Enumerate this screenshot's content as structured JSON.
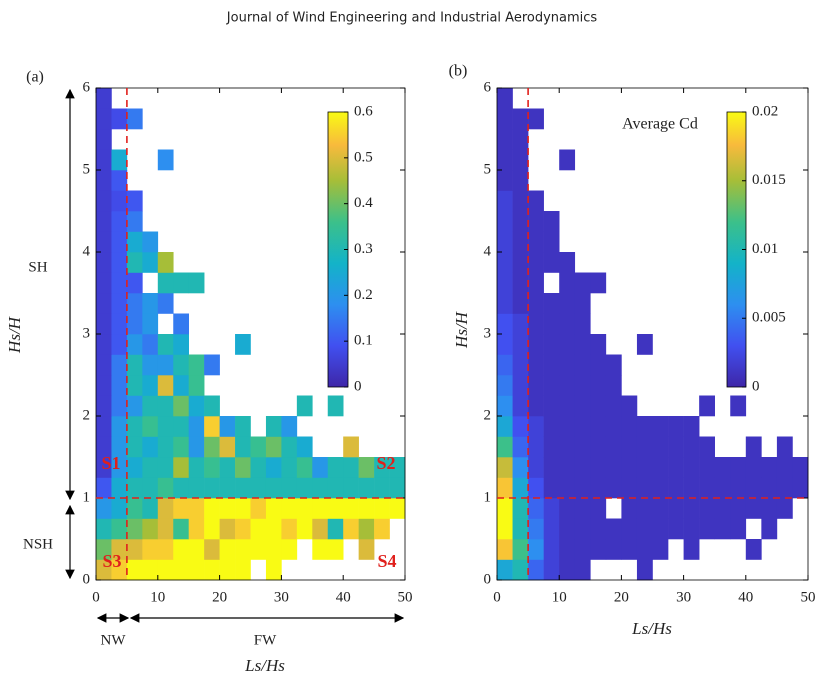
{
  "header": {
    "title": "Journal of Wind Engineering and Industrial Aerodynamics"
  },
  "chart_data": [
    {
      "type": "heatmap",
      "panel_label": "(a)",
      "xlabel": "Ls/Hs",
      "ylabel": "Hs/H",
      "xbins": [
        0,
        2.5,
        5,
        7.5,
        10,
        12.5,
        15,
        17.5,
        20,
        22.5,
        25,
        27.5,
        30,
        32.5,
        35,
        37.5,
        40,
        42.5,
        45,
        47.5,
        50
      ],
      "ybins": [
        0,
        0.25,
        0.5,
        0.75,
        1,
        1.25,
        1.5,
        1.75,
        2,
        2.25,
        2.5,
        2.75,
        3,
        3.25,
        3.5,
        3.75,
        4,
        4.25,
        4.5,
        4.75,
        5,
        5.25,
        5.5,
        5.75,
        6
      ],
      "xlim": [
        0,
        50
      ],
      "ylim": [
        0,
        6
      ],
      "xticks": [
        0,
        10,
        20,
        30,
        40,
        50
      ],
      "yticks": [
        0,
        1,
        2,
        3,
        4,
        5,
        6
      ],
      "clim": [
        0,
        0.6
      ],
      "cticks": [
        0,
        0.1,
        0.2,
        0.3,
        0.4,
        0.5,
        0.6
      ],
      "colormap": "parula",
      "vline": 5,
      "hline": 1,
      "ref_color": "#e0201c",
      "annotations": [
        "S1",
        "S2",
        "S3",
        "S4"
      ],
      "regions": [
        "SH",
        "NSH",
        "NW",
        "FW"
      ],
      "z": [
        [
          0.5,
          0.55,
          0.6,
          0.6,
          0.6,
          0.6,
          0.6,
          0.6,
          0.6,
          0.6,
          null,
          0.6,
          null,
          null,
          null,
          null,
          null,
          null,
          null,
          null
        ],
        [
          0.4,
          0.5,
          0.5,
          0.55,
          0.55,
          0.6,
          0.6,
          0.5,
          0.6,
          0.6,
          0.6,
          0.6,
          0.6,
          null,
          0.6,
          0.6,
          null,
          0.5,
          null,
          null
        ],
        [
          0.3,
          0.35,
          0.4,
          0.45,
          0.5,
          0.35,
          0.55,
          0.6,
          0.5,
          0.55,
          0.6,
          0.6,
          0.55,
          0.6,
          0.5,
          0.3,
          0.55,
          0.45,
          0.55,
          null
        ],
        [
          0.2,
          0.25,
          0.35,
          0.3,
          0.5,
          0.55,
          0.55,
          0.6,
          0.6,
          0.6,
          0.55,
          0.6,
          0.6,
          0.6,
          0.6,
          0.6,
          0.6,
          0.6,
          0.6,
          0.6
        ],
        [
          0.1,
          0.25,
          0.3,
          0.3,
          0.35,
          0.3,
          0.3,
          0.3,
          0.3,
          0.3,
          0.3,
          0.3,
          0.3,
          0.3,
          0.3,
          0.3,
          0.3,
          0.3,
          0.3,
          0.3
        ],
        [
          0.05,
          0.2,
          0.25,
          0.3,
          0.3,
          0.45,
          0.3,
          0.35,
          0.3,
          0.4,
          0.3,
          0.25,
          0.3,
          0.35,
          0.2,
          0.3,
          0.3,
          0.4,
          0.3,
          0.3
        ],
        [
          0.05,
          0.2,
          0.3,
          0.25,
          0.3,
          0.35,
          0.2,
          0.4,
          0.5,
          0.3,
          0.35,
          0.4,
          0.3,
          0.25,
          null,
          null,
          0.5,
          null,
          null,
          null
        ],
        [
          0.05,
          0.2,
          0.3,
          0.35,
          0.3,
          0.3,
          0.2,
          0.55,
          0.2,
          0.3,
          null,
          0.3,
          0.2,
          null,
          null,
          null,
          null,
          null,
          null,
          null
        ],
        [
          0.05,
          0.15,
          0.2,
          0.3,
          0.3,
          0.4,
          0.25,
          0.3,
          null,
          null,
          null,
          null,
          null,
          0.3,
          null,
          0.3,
          null,
          null,
          null,
          null
        ],
        [
          0.05,
          0.15,
          0.3,
          0.25,
          0.5,
          0.25,
          0.35,
          null,
          null,
          null,
          null,
          null,
          null,
          null,
          null,
          null,
          null,
          null,
          null,
          null
        ],
        [
          0.05,
          0.15,
          0.3,
          0.2,
          0.2,
          0.3,
          0.35,
          0.15,
          null,
          null,
          null,
          null,
          null,
          null,
          null,
          null,
          null,
          null,
          null,
          null
        ],
        [
          0.05,
          0.1,
          0.2,
          0.15,
          0.3,
          0.25,
          null,
          null,
          null,
          0.25,
          null,
          null,
          null,
          null,
          null,
          null,
          null,
          null,
          null,
          null
        ],
        [
          0.05,
          0.1,
          0.15,
          0.2,
          null,
          0.15,
          null,
          null,
          null,
          null,
          null,
          null,
          null,
          null,
          null,
          null,
          null,
          null,
          null,
          null
        ],
        [
          0.05,
          0.1,
          0.15,
          0.2,
          0.15,
          null,
          null,
          null,
          null,
          null,
          null,
          null,
          null,
          null,
          null,
          null,
          null,
          null,
          null,
          null
        ],
        [
          0.05,
          0.1,
          0.1,
          null,
          0.3,
          0.3,
          0.3,
          null,
          null,
          null,
          null,
          null,
          null,
          null,
          null,
          null,
          null,
          null,
          null,
          null
        ],
        [
          0.05,
          0.1,
          0.3,
          0.25,
          0.45,
          null,
          null,
          null,
          null,
          null,
          null,
          null,
          null,
          null,
          null,
          null,
          null,
          null,
          null,
          null
        ],
        [
          0.05,
          0.1,
          0.25,
          0.2,
          null,
          null,
          null,
          null,
          null,
          null,
          null,
          null,
          null,
          null,
          null,
          null,
          null,
          null,
          null,
          null
        ],
        [
          0.05,
          0.1,
          0.15,
          null,
          null,
          null,
          null,
          null,
          null,
          null,
          null,
          null,
          null,
          null,
          null,
          null,
          null,
          null,
          null,
          null
        ],
        [
          0.05,
          0.08,
          0.1,
          null,
          null,
          null,
          null,
          null,
          null,
          null,
          null,
          null,
          null,
          null,
          null,
          null,
          null,
          null,
          null,
          null
        ],
        [
          0.05,
          0.1,
          null,
          null,
          null,
          null,
          null,
          null,
          null,
          null,
          null,
          null,
          null,
          null,
          null,
          null,
          null,
          null,
          null,
          null
        ],
        [
          0.05,
          0.25,
          null,
          null,
          0.18,
          null,
          null,
          null,
          null,
          null,
          null,
          null,
          null,
          null,
          null,
          null,
          null,
          null,
          null,
          null
        ],
        [
          0.05,
          null,
          null,
          null,
          null,
          null,
          null,
          null,
          null,
          null,
          null,
          null,
          null,
          null,
          null,
          null,
          null,
          null,
          null,
          null
        ],
        [
          0.05,
          0.08,
          0.15,
          null,
          null,
          null,
          null,
          null,
          null,
          null,
          null,
          null,
          null,
          null,
          null,
          null,
          null,
          null,
          null,
          null
        ],
        [
          0.05,
          null,
          null,
          null,
          null,
          null,
          null,
          null,
          null,
          null,
          null,
          null,
          null,
          null,
          null,
          null,
          null,
          null,
          null,
          null
        ]
      ]
    },
    {
      "type": "heatmap",
      "panel_label": "(b)",
      "xlabel": "Ls/Hs",
      "ylabel": "Hs/H",
      "colorbar_label": "Average Cd",
      "xbins": [
        0,
        2.5,
        5,
        7.5,
        10,
        12.5,
        15,
        17.5,
        20,
        22.5,
        25,
        27.5,
        30,
        32.5,
        35,
        37.5,
        40,
        42.5,
        45,
        47.5,
        50
      ],
      "ybins": [
        0,
        0.25,
        0.5,
        0.75,
        1,
        1.25,
        1.5,
        1.75,
        2,
        2.25,
        2.5,
        2.75,
        3,
        3.25,
        3.5,
        3.75,
        4,
        4.25,
        4.5,
        4.75,
        5,
        5.25,
        5.5,
        5.75,
        6
      ],
      "xlim": [
        0,
        50
      ],
      "ylim": [
        0,
        6
      ],
      "xticks": [
        0,
        10,
        20,
        30,
        40,
        50
      ],
      "yticks": [
        0,
        1,
        2,
        3,
        4,
        5,
        6
      ],
      "clim": [
        0,
        0.02
      ],
      "cticks": [
        0,
        0.005,
        0.01,
        0.015,
        0.02
      ],
      "colormap": "parula",
      "vline": 5,
      "hline": 1,
      "ref_color": "#e0201c",
      "z": [
        [
          0.008,
          0.01,
          0.004,
          0.002,
          0.001,
          0.001,
          null,
          null,
          null,
          0.001,
          null,
          null,
          null,
          null,
          null,
          null,
          null,
          null,
          null,
          null
        ],
        [
          0.018,
          0.012,
          0.006,
          0.002,
          0.001,
          0.001,
          0.001,
          0.001,
          0.001,
          0.001,
          0.001,
          null,
          0.001,
          null,
          null,
          null,
          0.001,
          null,
          null,
          null
        ],
        [
          0.02,
          0.01,
          0.005,
          0.002,
          0.001,
          0.001,
          0.001,
          0.001,
          0.001,
          0.001,
          0.001,
          0.001,
          0.001,
          0.001,
          0.001,
          0.001,
          null,
          0.001,
          null,
          null
        ],
        [
          0.02,
          0.01,
          0.004,
          0.002,
          0.001,
          0.001,
          0.001,
          null,
          0.001,
          0.001,
          0.001,
          0.001,
          0.001,
          0.001,
          0.001,
          0.001,
          0.001,
          0.001,
          0.001,
          null
        ],
        [
          0.018,
          0.008,
          0.003,
          0.001,
          0.001,
          0.001,
          0.001,
          0.001,
          0.001,
          0.001,
          0.001,
          0.001,
          0.001,
          0.001,
          0.001,
          0.001,
          0.001,
          0.001,
          0.001,
          0.001
        ],
        [
          0.016,
          0.006,
          0.002,
          0.001,
          0.001,
          0.001,
          0.001,
          0.001,
          0.001,
          0.001,
          0.001,
          0.001,
          0.001,
          0.001,
          0.001,
          0.001,
          0.001,
          0.001,
          0.001,
          0.001
        ],
        [
          0.012,
          0.004,
          0.002,
          0.001,
          0.001,
          0.001,
          0.001,
          0.001,
          0.001,
          0.001,
          0.001,
          0.001,
          0.001,
          0.001,
          null,
          null,
          0.001,
          null,
          0.001,
          null
        ],
        [
          0.008,
          0.003,
          0.002,
          0.001,
          0.001,
          0.001,
          0.001,
          0.001,
          0.001,
          0.001,
          0.001,
          0.001,
          0.001,
          null,
          null,
          null,
          null,
          null,
          null,
          null
        ],
        [
          0.006,
          0.002,
          0.001,
          0.001,
          0.001,
          0.001,
          0.001,
          0.001,
          0.001,
          null,
          null,
          null,
          null,
          0.001,
          null,
          0.001,
          null,
          null,
          null,
          null
        ],
        [
          0.005,
          0.002,
          0.001,
          0.001,
          0.001,
          0.001,
          0.001,
          0.001,
          null,
          null,
          null,
          null,
          null,
          null,
          null,
          null,
          null,
          null,
          null,
          null
        ],
        [
          0.004,
          0.002,
          0.001,
          0.001,
          0.001,
          0.001,
          0.001,
          0.001,
          null,
          null,
          null,
          null,
          null,
          null,
          null,
          null,
          null,
          null,
          null,
          null
        ],
        [
          0.003,
          0.002,
          0.001,
          0.001,
          0.001,
          0.001,
          0.001,
          null,
          null,
          0.001,
          null,
          null,
          null,
          null,
          null,
          null,
          null,
          null,
          null,
          null
        ],
        [
          0.003,
          0.002,
          0.001,
          0.001,
          0.001,
          0.001,
          null,
          null,
          null,
          null,
          null,
          null,
          null,
          null,
          null,
          null,
          null,
          null,
          null,
          null
        ],
        [
          0.002,
          0.001,
          0.001,
          0.001,
          0.001,
          0.001,
          null,
          null,
          null,
          null,
          null,
          null,
          null,
          null,
          null,
          null,
          null,
          null,
          null,
          null
        ],
        [
          0.002,
          0.001,
          0.001,
          null,
          0.001,
          0.001,
          0.001,
          null,
          null,
          null,
          null,
          null,
          null,
          null,
          null,
          null,
          null,
          null,
          null,
          null
        ],
        [
          0.002,
          0.001,
          0.001,
          0.001,
          0.001,
          null,
          null,
          null,
          null,
          null,
          null,
          null,
          null,
          null,
          null,
          null,
          null,
          null,
          null,
          null
        ],
        [
          0.002,
          0.001,
          0.001,
          0.001,
          null,
          null,
          null,
          null,
          null,
          null,
          null,
          null,
          null,
          null,
          null,
          null,
          null,
          null,
          null,
          null
        ],
        [
          0.002,
          0.001,
          0.001,
          0.001,
          null,
          null,
          null,
          null,
          null,
          null,
          null,
          null,
          null,
          null,
          null,
          null,
          null,
          null,
          null,
          null
        ],
        [
          0.002,
          0.001,
          0.001,
          null,
          null,
          null,
          null,
          null,
          null,
          null,
          null,
          null,
          null,
          null,
          null,
          null,
          null,
          null,
          null,
          null
        ],
        [
          0.001,
          0.001,
          null,
          null,
          null,
          null,
          null,
          null,
          null,
          null,
          null,
          null,
          null,
          null,
          null,
          null,
          null,
          null,
          null,
          null
        ],
        [
          0.001,
          0.001,
          null,
          null,
          0.001,
          null,
          null,
          null,
          null,
          null,
          null,
          null,
          null,
          null,
          null,
          null,
          null,
          null,
          null,
          null
        ],
        [
          0.001,
          0.001,
          null,
          null,
          null,
          null,
          null,
          null,
          null,
          null,
          null,
          null,
          null,
          null,
          null,
          null,
          null,
          null,
          null,
          null
        ],
        [
          0.001,
          0.001,
          0.001,
          null,
          null,
          null,
          null,
          null,
          null,
          null,
          null,
          null,
          null,
          null,
          null,
          null,
          null,
          null,
          null,
          null
        ],
        [
          0.001,
          null,
          null,
          null,
          null,
          null,
          null,
          null,
          null,
          null,
          null,
          null,
          null,
          null,
          null,
          null,
          null,
          null,
          null,
          null
        ]
      ]
    }
  ]
}
